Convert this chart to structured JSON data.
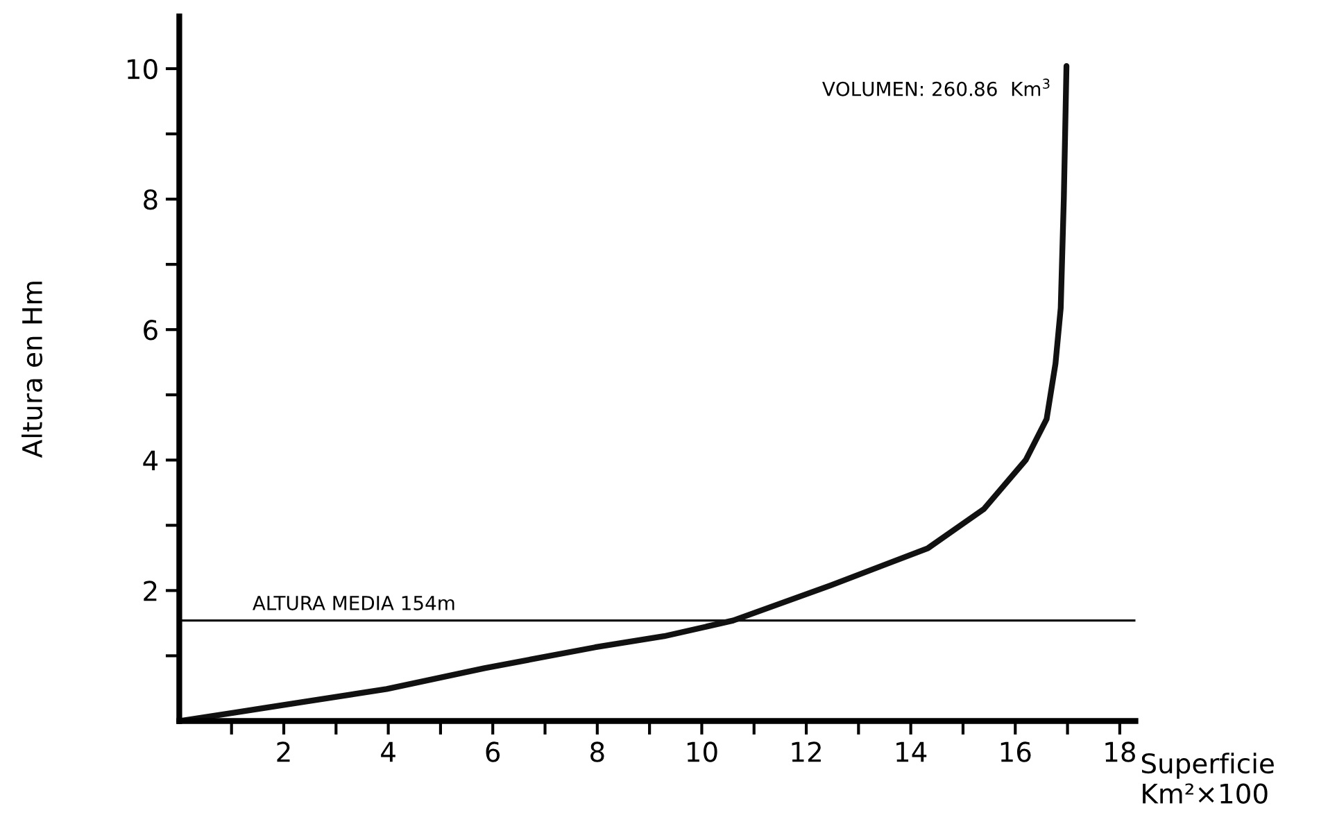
{
  "chart_data": {
    "type": "line",
    "xlabel": "Superficie\nKm²×100",
    "ylabel": "Altura en Hm",
    "x": [
      0,
      1.06,
      3.97,
      5.84,
      7.96,
      9.28,
      10.6,
      12.47,
      14.33,
      15.4,
      16.2,
      16.6,
      16.77,
      16.87,
      16.93,
      16.98
    ],
    "series": [
      {
        "color": "#111111",
        "values": [
          0,
          0.13,
          0.49,
          0.81,
          1.13,
          1.3,
          1.54,
          2.08,
          2.65,
          3.25,
          4.0,
          4.63,
          5.48,
          6.33,
          8.03,
          10.04
        ]
      }
    ],
    "xlim": [
      0,
      18.3
    ],
    "ylim": [
      0,
      10.8
    ],
    "xticks": [
      {
        "value": 1,
        "label": null
      },
      2,
      {
        "value": 3,
        "label": null
      },
      4,
      {
        "value": 5,
        "label": null
      },
      6,
      {
        "value": 7,
        "label": null
      },
      8,
      {
        "value": 9,
        "label": null
      },
      10,
      {
        "value": 11,
        "label": null
      },
      12,
      {
        "value": 13,
        "label": null
      },
      14,
      {
        "value": 15,
        "label": null
      },
      16,
      {
        "value": 17,
        "label": null
      },
      18
    ],
    "yticks": [
      {
        "value": 1,
        "label": null
      },
      2,
      {
        "value": 3,
        "label": null
      },
      4,
      {
        "value": 5,
        "label": null
      },
      6,
      {
        "value": 7,
        "label": null
      },
      8,
      {
        "value": 9,
        "label": null
      },
      10
    ],
    "ref_lines": [
      {
        "axis": "y",
        "value": 1.54,
        "label": "ALTURA MEDIA 154m",
        "color": "#111111"
      }
    ],
    "annotations": [
      {
        "text": "VOLUMEN: 260.86  Km$^{3}$",
        "x": 16.98,
        "y": 10.04
      }
    ],
    "grid": false,
    "legend": false,
    "marker": "none",
    "line_style": "solid"
  }
}
